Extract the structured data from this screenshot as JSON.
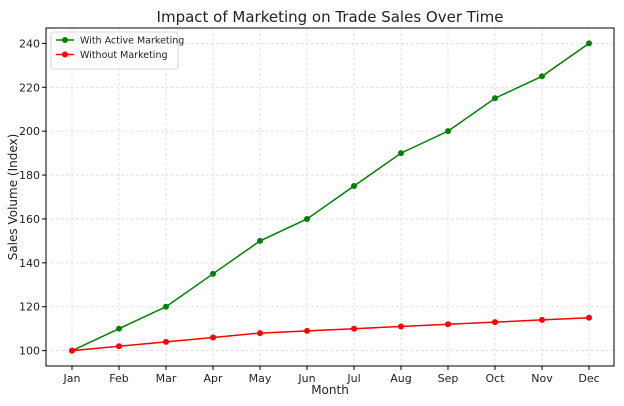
{
  "chart_data": {
    "type": "line",
    "title": "Impact of Marketing on Trade Sales Over Time",
    "xlabel": "Month",
    "ylabel": "Sales Volume (Index)",
    "categories": [
      "Jan",
      "Feb",
      "Mar",
      "Apr",
      "May",
      "Jun",
      "Jul",
      "Aug",
      "Sep",
      "Oct",
      "Nov",
      "Dec"
    ],
    "ylim": [
      93,
      247
    ],
    "yticks": [
      100,
      120,
      140,
      160,
      180,
      200,
      220,
      240
    ],
    "grid": true,
    "legend_position": "top-left",
    "series": [
      {
        "name": "With Active Marketing",
        "color": "#008000",
        "values": [
          100,
          110,
          120,
          135,
          150,
          160,
          175,
          190,
          200,
          215,
          225,
          240
        ]
      },
      {
        "name": "Without Marketing",
        "color": "#ff0000",
        "values": [
          100,
          102,
          104,
          106,
          108,
          109,
          110,
          111,
          112,
          113,
          114,
          115
        ]
      }
    ]
  }
}
